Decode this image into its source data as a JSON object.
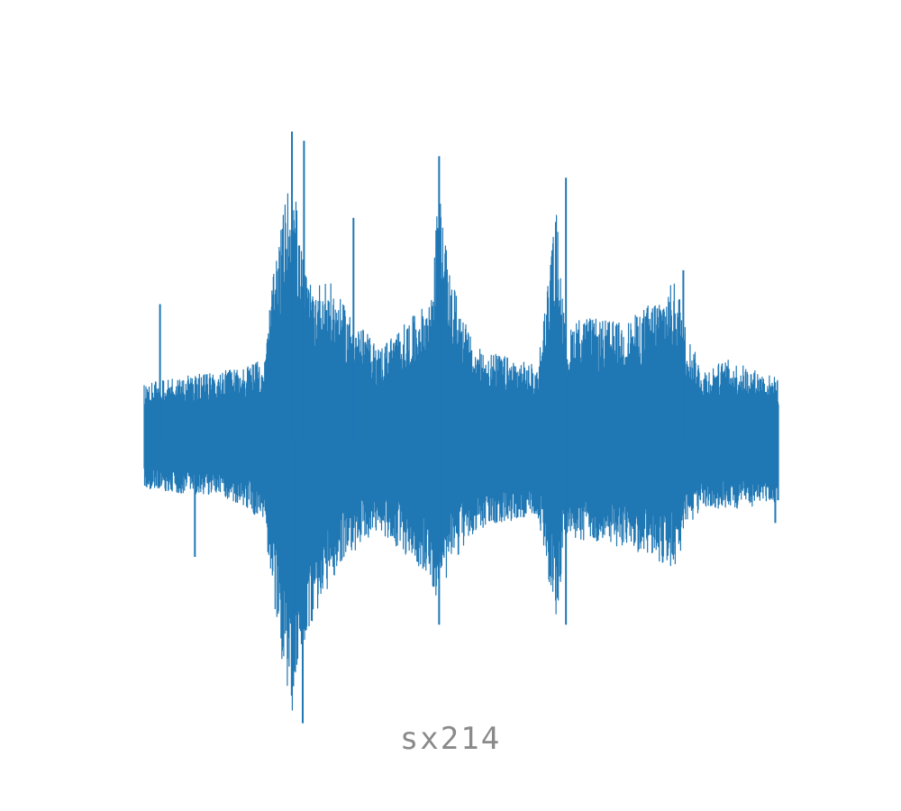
{
  "caption": "sx214",
  "colors": {
    "waveform": "#1f77b4",
    "caption": "#8a8a8a",
    "background": "#ffffff"
  },
  "chart_data": {
    "type": "line",
    "title": "",
    "xlabel": "",
    "ylabel": "",
    "axes_visible": false,
    "grid": false,
    "legend": "none",
    "ylim": [
      -1,
      1
    ],
    "series": [
      {
        "color": "#1f77b4",
        "envelope_keypoints": {
          "x": [
            0.0,
            0.03,
            0.12,
            0.19,
            0.2,
            0.22,
            0.235,
            0.245,
            0.26,
            0.29,
            0.32,
            0.37,
            0.45,
            0.465,
            0.48,
            0.52,
            0.62,
            0.65,
            0.665,
            0.68,
            0.76,
            0.84,
            0.855,
            0.88,
            0.92,
            1.0
          ],
          "upper": [
            0.18,
            0.2,
            0.22,
            0.26,
            0.48,
            0.75,
            0.9,
            0.65,
            0.5,
            0.52,
            0.42,
            0.3,
            0.45,
            0.82,
            0.55,
            0.3,
            0.24,
            0.75,
            0.32,
            0.4,
            0.38,
            0.52,
            0.35,
            0.23,
            0.26,
            0.2
          ],
          "lower": [
            -0.16,
            -0.17,
            -0.18,
            -0.26,
            -0.5,
            -0.75,
            -0.9,
            -0.7,
            -0.62,
            -0.48,
            -0.38,
            -0.3,
            -0.44,
            -0.55,
            -0.42,
            -0.3,
            -0.24,
            -0.62,
            -0.3,
            -0.33,
            -0.35,
            -0.42,
            -0.3,
            -0.22,
            -0.23,
            -0.2
          ]
        },
        "spikes": [
          {
            "x": 0.025,
            "y": 0.44
          },
          {
            "x": 0.08,
            "y": -0.38
          },
          {
            "x": 0.233,
            "y": 1.0
          },
          {
            "x": 0.235,
            "y": -0.8
          },
          {
            "x": 0.25,
            "y": -0.92
          },
          {
            "x": 0.252,
            "y": 0.97
          },
          {
            "x": 0.33,
            "y": 0.72
          },
          {
            "x": 0.465,
            "y": 0.92
          },
          {
            "x": 0.465,
            "y": -0.6
          },
          {
            "x": 0.665,
            "y": 0.85
          },
          {
            "x": 0.665,
            "y": -0.6
          },
          {
            "x": 0.85,
            "y": 0.55
          },
          {
            "x": 0.995,
            "y": -0.27
          }
        ]
      }
    ]
  }
}
